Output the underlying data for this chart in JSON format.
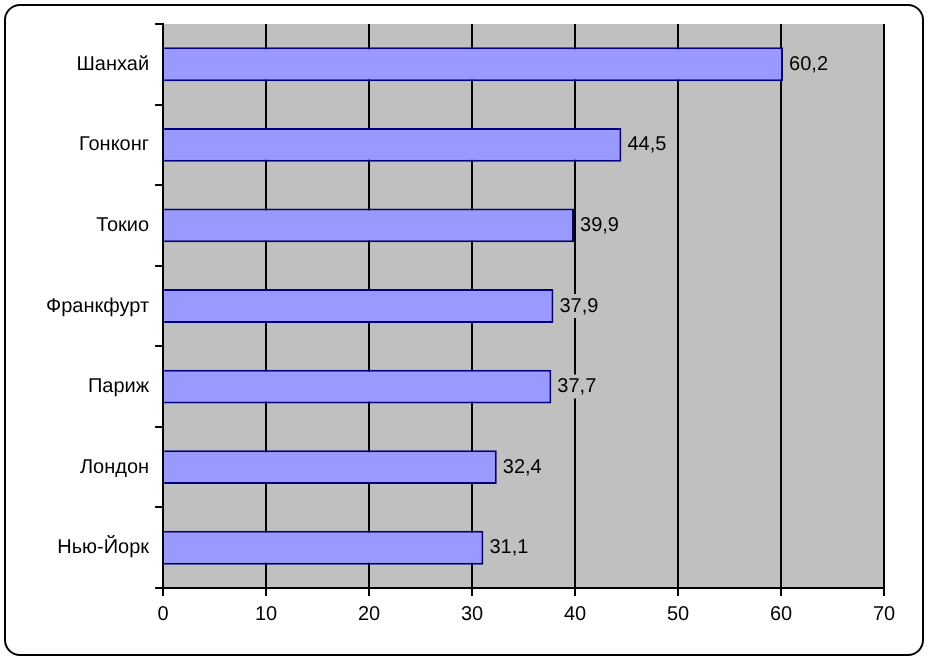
{
  "chart_data": {
    "type": "bar",
    "orientation": "horizontal",
    "categories": [
      "Шанхай",
      "Гонконг",
      "Токио",
      "Франкфурт",
      "Париж",
      "Лондон",
      "Нью-Йорк"
    ],
    "values": [
      60.2,
      44.5,
      39.9,
      37.9,
      37.7,
      32.4,
      31.1
    ],
    "value_labels": [
      "60,2",
      "44,5",
      "39,9",
      "37,9",
      "37,7",
      "32,4",
      "31,1"
    ],
    "color": "#9999ff",
    "xlim": [
      0,
      70
    ],
    "xticks": [
      0,
      10,
      20,
      30,
      40,
      50,
      60,
      70
    ],
    "grid": "x",
    "legend": false
  }
}
